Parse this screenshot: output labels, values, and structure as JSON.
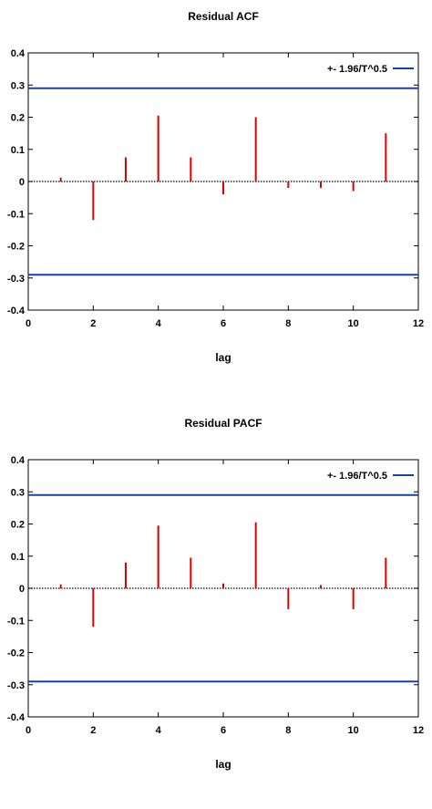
{
  "chart_data": [
    {
      "type": "bar",
      "title": "Residual ACF",
      "xlabel": "lag",
      "ylabel": "",
      "xlim": [
        0,
        12
      ],
      "ylim": [
        -0.4,
        0.4
      ],
      "xticks": [
        0,
        2,
        4,
        6,
        8,
        10,
        12
      ],
      "yticks": [
        -0.4,
        -0.3,
        -0.2,
        -0.1,
        0,
        0.1,
        0.2,
        0.3,
        0.4
      ],
      "grid": false,
      "legend_position": "top-right",
      "series": [
        {
          "values": [
            0.012,
            -0.12,
            0.075,
            0.205,
            0.075,
            -0.04,
            0.2,
            -0.02,
            -0.02,
            -0.03,
            0.15
          ],
          "color": "#dd0000"
        }
      ],
      "x": [
        1,
        2,
        3,
        4,
        5,
        6,
        7,
        8,
        9,
        10,
        11
      ],
      "bands": [
        {
          "name": "+- 1.96/T^0.5",
          "values": [
            0.29,
            -0.29
          ],
          "color": "#1a3fb0"
        }
      ],
      "zero_line": {
        "style": "dotted",
        "color": "#000000"
      }
    },
    {
      "type": "bar",
      "title": "Residual PACF",
      "xlabel": "lag",
      "ylabel": "",
      "xlim": [
        0,
        12
      ],
      "ylim": [
        -0.4,
        0.4
      ],
      "xticks": [
        0,
        2,
        4,
        6,
        8,
        10,
        12
      ],
      "yticks": [
        -0.4,
        -0.3,
        -0.2,
        -0.1,
        0,
        0.1,
        0.2,
        0.3,
        0.4
      ],
      "grid": false,
      "legend_position": "top-right",
      "series": [
        {
          "values": [
            0.012,
            -0.12,
            0.08,
            0.195,
            0.095,
            0.015,
            0.205,
            -0.065,
            0.01,
            -0.065,
            0.095
          ],
          "color": "#dd0000"
        }
      ],
      "x": [
        1,
        2,
        3,
        4,
        5,
        6,
        7,
        8,
        9,
        10,
        11
      ],
      "bands": [
        {
          "name": "+- 1.96/T^0.5",
          "values": [
            0.29,
            -0.29
          ],
          "color": "#1a3fb0"
        }
      ],
      "zero_line": {
        "style": "dotted",
        "color": "#000000"
      }
    }
  ]
}
